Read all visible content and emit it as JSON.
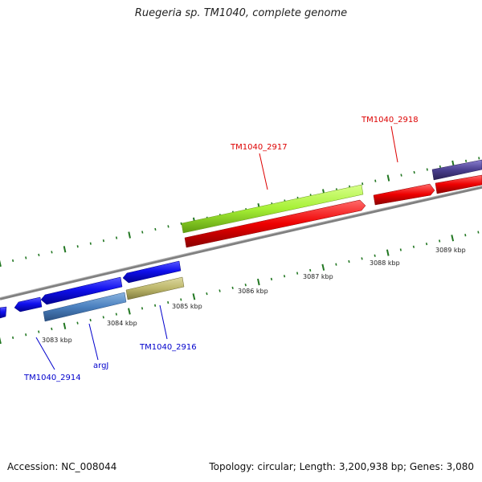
{
  "title": "Ruegeria sp. TM1040, complete genome",
  "footer": {
    "accession": "Accession: NC_008044",
    "summary": "Topology: circular; Length: 3,200,938 bp; Genes: 3,080"
  },
  "colors": {
    "backbone": "#808080",
    "ticks": "#227722",
    "label_red": "#dd0000",
    "label_blue": "#0000cc",
    "gene_blue": "#1010ee",
    "gene_steelblue": "#4a80bf",
    "gene_olive": "#bdb76b",
    "gene_lime": "#a6f035",
    "gene_red": "#ee0000",
    "gene_navy": "#4a3f8f"
  },
  "scale_labels": [
    {
      "text": "3083 kbp",
      "kbp": 3083
    },
    {
      "text": "3084 kbp",
      "kbp": 3084
    },
    {
      "text": "3085 kbp",
      "kbp": 3085
    },
    {
      "text": "3086 kbp",
      "kbp": 3086
    },
    {
      "text": "3087 kbp",
      "kbp": 3087
    },
    {
      "text": "3088 kbp",
      "kbp": 3088
    },
    {
      "text": "3089 kbp",
      "kbp": 3089
    }
  ],
  "gene_labels": {
    "g2914": "TM1040_2914",
    "argJ": "argJ",
    "g2916": "TM1040_2916",
    "g2917": "TM1040_2917",
    "g2918": "TM1040_2918"
  }
}
